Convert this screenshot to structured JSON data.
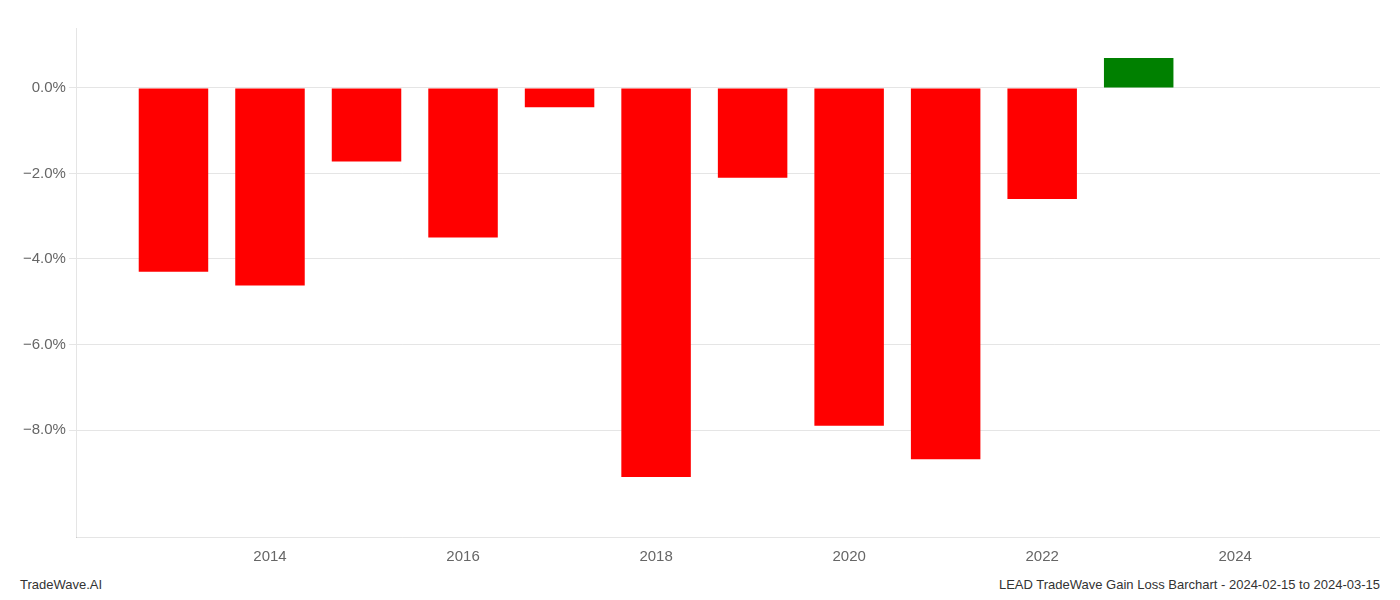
{
  "chart_data": {
    "type": "bar",
    "x": [
      2013,
      2014,
      2015,
      2016,
      2017,
      2018,
      2019,
      2020,
      2021,
      2022,
      2023
    ],
    "values": [
      -4.3,
      -4.62,
      -1.72,
      -3.5,
      -0.45,
      -9.1,
      -2.1,
      -7.9,
      -8.68,
      -2.6,
      0.7
    ],
    "colors": [
      "#ff0000",
      "#ff0000",
      "#ff0000",
      "#ff0000",
      "#ff0000",
      "#ff0000",
      "#ff0000",
      "#ff0000",
      "#ff0000",
      "#ff0000",
      "#008000"
    ],
    "xlim": [
      2012.0,
      2025.5
    ],
    "xticks": [
      2014,
      2016,
      2018,
      2020,
      2022,
      2024
    ],
    "ylim": [
      -10.5,
      1.4
    ],
    "yticks": [
      {
        "value": 0.0,
        "label": "0.0%"
      },
      {
        "value": -2.0,
        "label": "−2.0%"
      },
      {
        "value": -4.0,
        "label": "−4.0%"
      },
      {
        "value": -6.0,
        "label": "−6.0%"
      },
      {
        "value": -8.0,
        "label": "−8.0%"
      }
    ],
    "grid": true,
    "annotations": [
      "TradeWave.AI",
      "LEAD TradeWave Gain Loss Barchart - 2024-02-15 to 2024-03-15"
    ]
  }
}
